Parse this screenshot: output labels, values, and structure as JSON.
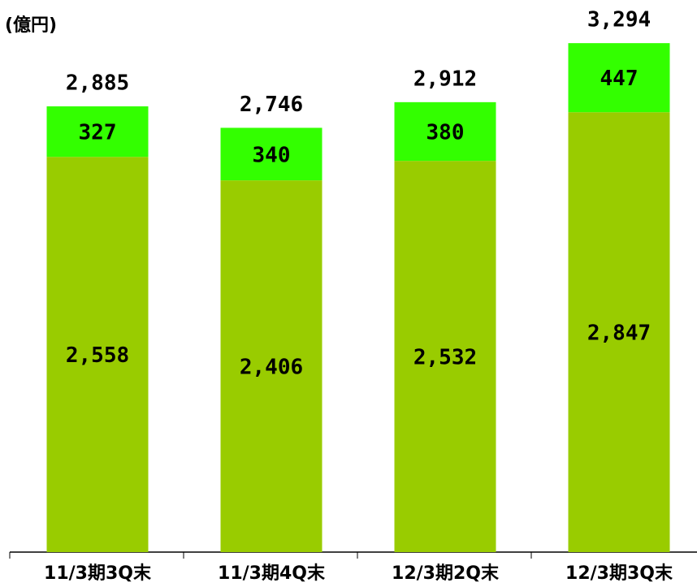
{
  "chart_data": {
    "type": "stacked-bar",
    "title": "(億円)",
    "categories": [
      "11/3期3Q末",
      "11/3期4Q末",
      "12/3期2Q末",
      "12/3期3Q末"
    ],
    "series": [
      {
        "color": "#99cc00",
        "values": [
          2558,
          2406,
          2532,
          2847
        ],
        "value_labels": [
          "2,558",
          "2,406",
          "2,532",
          "2,847"
        ]
      },
      {
        "color": "#33ff00",
        "values": [
          327,
          340,
          380,
          447
        ],
        "value_labels": [
          "327",
          "340",
          "380",
          "447"
        ]
      }
    ],
    "totals": [
      2885,
      2746,
      2912,
      3294
    ],
    "total_labels": [
      "2,885",
      "2,746",
      "2,912",
      "3,294"
    ],
    "ylim": [
      0,
      3300
    ]
  }
}
